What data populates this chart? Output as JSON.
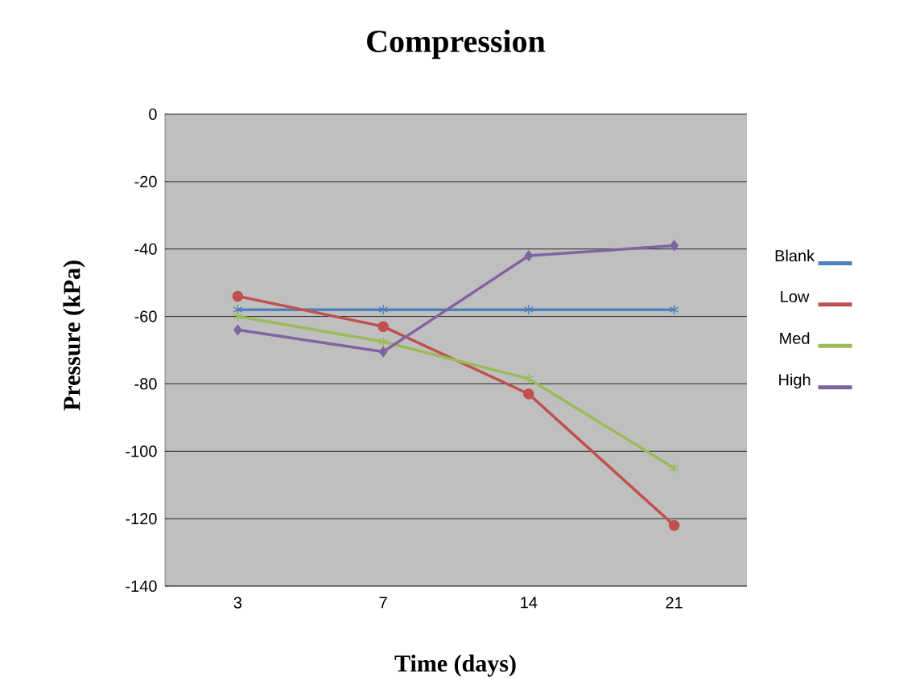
{
  "chart_data": {
    "type": "line",
    "title": "Compression",
    "xlabel": "Time (days)",
    "ylabel": "Pressure (kPa)",
    "categories": [
      "3",
      "7",
      "14",
      "21"
    ],
    "series": [
      {
        "name": "Blank",
        "color": "#4f81bd",
        "marker": "cross",
        "values": [
          -58,
          -58,
          -58,
          -58
        ]
      },
      {
        "name": "Low",
        "color": "#c0504d",
        "marker": "circle",
        "values": [
          -54,
          -63,
          -83,
          -122
        ]
      },
      {
        "name": "Med",
        "color": "#9bbb59",
        "marker": "cross",
        "values": [
          -60,
          -67.5,
          -78.5,
          -105
        ]
      },
      {
        "name": "High",
        "color": "#8064a2",
        "marker": "diamond",
        "values": [
          -64,
          -70.5,
          -42,
          -39
        ]
      }
    ],
    "ylim": [
      -140,
      0
    ],
    "yticks": [
      -140,
      -120,
      -100,
      -80,
      -60,
      -40,
      -20,
      0
    ],
    "grid": "y",
    "legend": "right"
  }
}
